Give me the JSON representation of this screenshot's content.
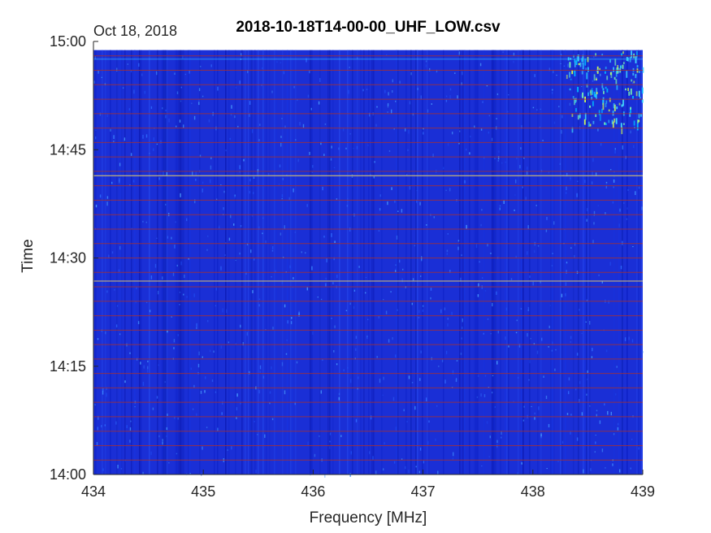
{
  "chart_data": {
    "type": "heatmap",
    "title": "2018-10-18T14-00-00_UHF_LOW.csv",
    "date_label": "Oct 18, 2018",
    "xlabel": "Frequency [MHz]",
    "ylabel": "Time",
    "xlim": [
      434,
      439
    ],
    "xticks": [
      434,
      435,
      436,
      437,
      438,
      439
    ],
    "ylim": [
      "14:00",
      "15:00"
    ],
    "yticks": [
      "14:00",
      "14:15",
      "14:30",
      "14:45",
      "15:00"
    ],
    "colormap": "jet",
    "background_color": "#1a2fd6",
    "separator_line_color": "#a0303a",
    "separator_lines_minutes": [
      2,
      4,
      6,
      8,
      10,
      12,
      14,
      16,
      18,
      20,
      22,
      24,
      26,
      28,
      30,
      32,
      34,
      36,
      38,
      40,
      42,
      44,
      46,
      48,
      50,
      52,
      54,
      56,
      58
    ],
    "bright_lines_minutes": [
      26.8,
      41.4
    ],
    "hot_region": {
      "freq_range": [
        438.3,
        439.0
      ],
      "time_range": [
        "14:48",
        "14:59"
      ]
    },
    "data_end": "14:58.8"
  }
}
